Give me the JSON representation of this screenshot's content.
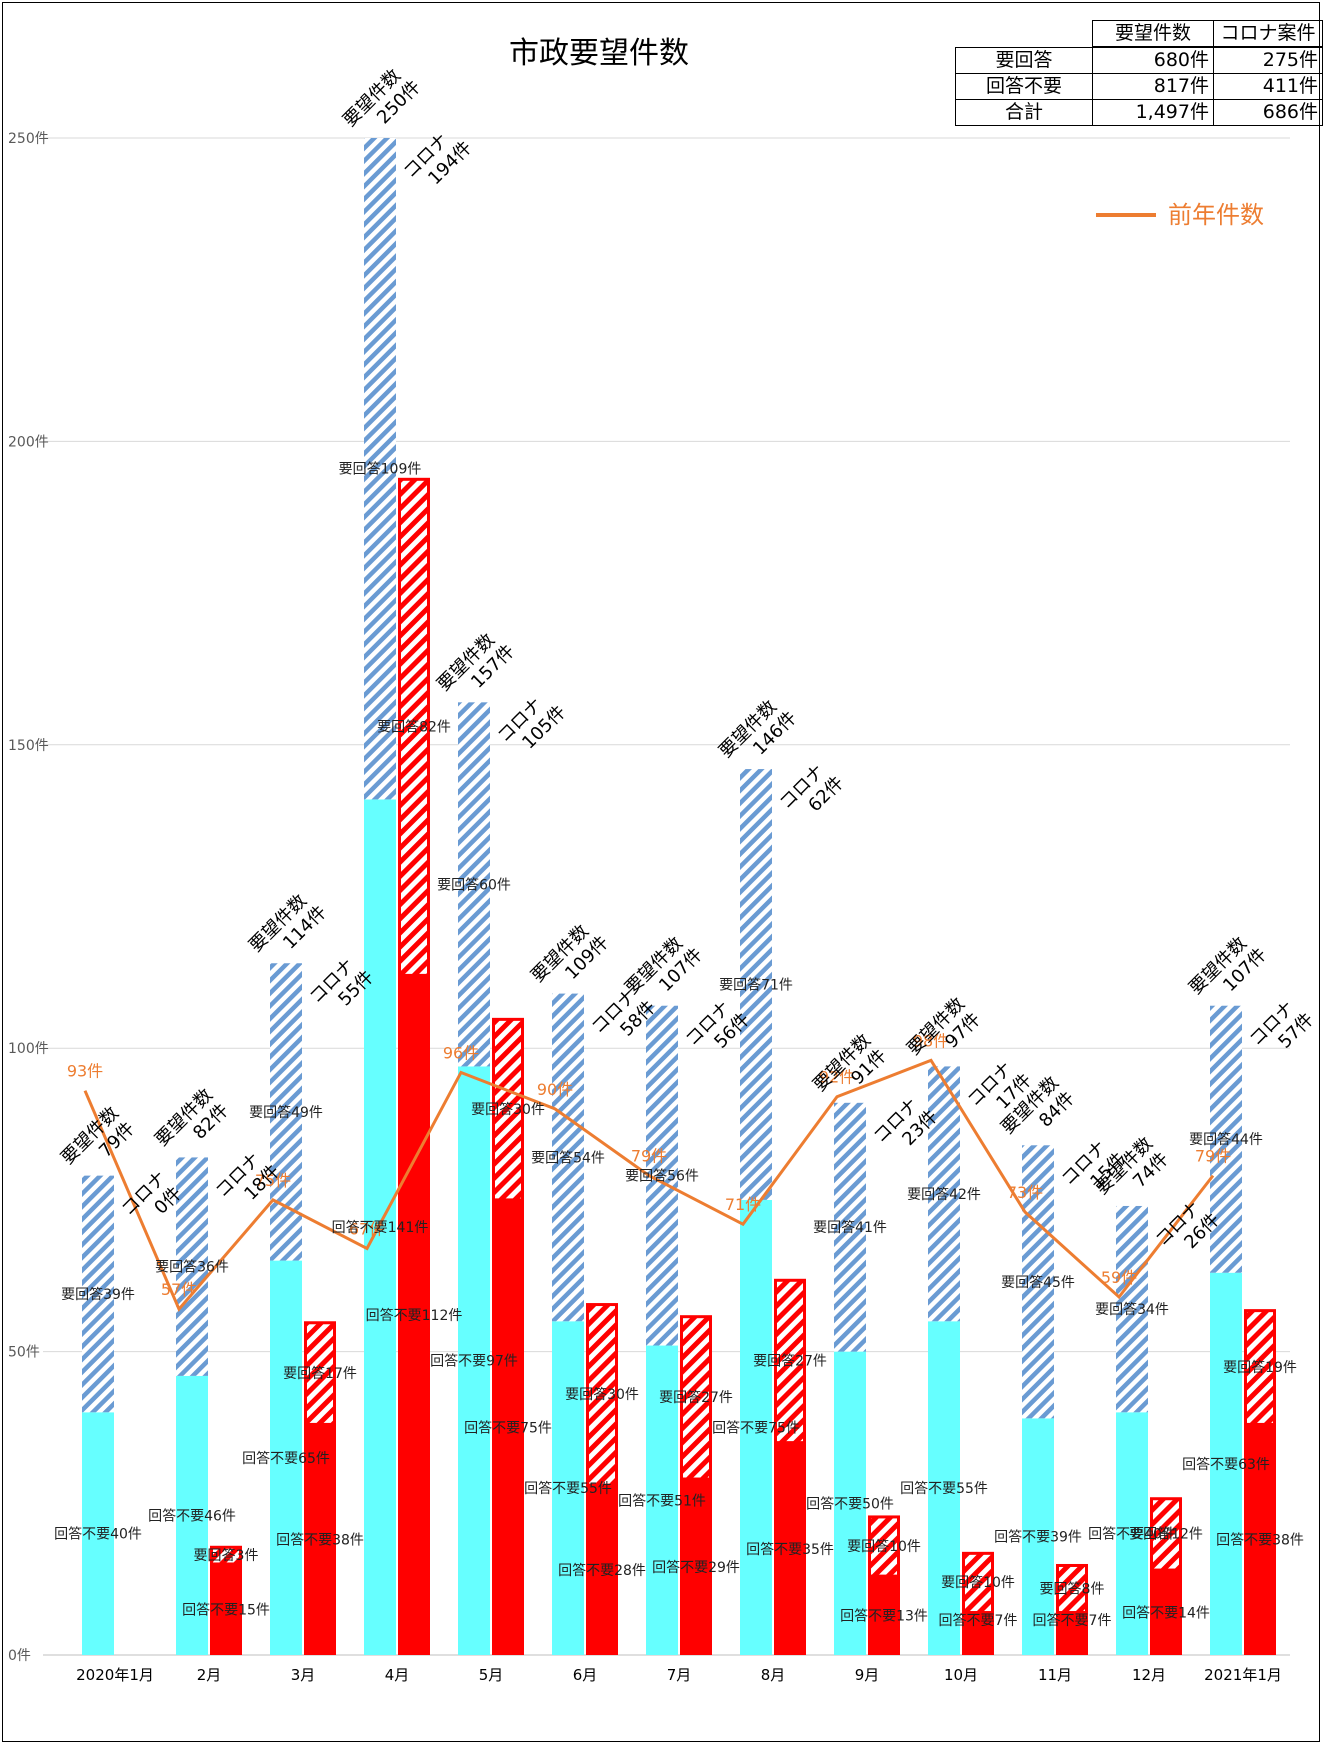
{
  "summary_table": {
    "columns": [
      "要望件数",
      "コロナ案件"
    ],
    "rows": [
      {
        "label": "要回答",
        "values": [
          "680件",
          "275件"
        ]
      },
      {
        "label": "回答不要",
        "values": [
          "817件",
          "411件"
        ]
      },
      {
        "label": "合計",
        "values": [
          "1,497件",
          "686件"
        ]
      }
    ]
  },
  "chart_data": {
    "type": "bar",
    "title": "市政要望件数",
    "ylim": [
      0,
      250
    ],
    "yticks": [
      {
        "value": 0,
        "label": "0件"
      },
      {
        "value": 50,
        "label": "50件"
      },
      {
        "value": 100,
        "label": "100件"
      },
      {
        "value": 150,
        "label": "150件"
      },
      {
        "value": 200,
        "label": "200件"
      },
      {
        "value": 250,
        "label": "250件"
      }
    ],
    "grid": true,
    "legend": {
      "position": "top-right",
      "entries": [
        {
          "name": "前年件数",
          "color": "#ED7D31"
        }
      ]
    },
    "colors": {
      "total_reply_needed": "#6A9BD3",
      "total_no_reply": "#66FFFF",
      "corona": "#FF0000",
      "prev_year": "#ED7D31"
    },
    "categories": [
      "2020年1月",
      "2月",
      "3月",
      "4月",
      "5月",
      "6月",
      "7月",
      "8月",
      "9月",
      "10月",
      "11月",
      "12月",
      "2021年1月"
    ],
    "series": [
      {
        "name": "要望件数",
        "no_reply": [
          40,
          46,
          65,
          141,
          97,
          55,
          51,
          75,
          50,
          55,
          39,
          40,
          63
        ],
        "reply_needed": [
          39,
          36,
          49,
          109,
          60,
          54,
          56,
          71,
          41,
          42,
          45,
          34,
          44
        ],
        "total": [
          79,
          82,
          114,
          250,
          157,
          109,
          107,
          146,
          91,
          97,
          84,
          74,
          107
        ],
        "no_reply_labels": [
          "回答不要40件",
          "回答不要46件",
          "回答不要65件",
          "回答不要141件",
          "回答不要97件",
          "回答不要55件",
          "回答不要51件",
          "回答不要75件",
          "回答不要50件",
          "回答不要55件",
          "回答不要39件",
          "回答不要40件",
          "回答不要63件"
        ],
        "reply_needed_labels": [
          "要回答39件",
          "要回答36件",
          "要回答49件",
          "要回答109件",
          "要回答60件",
          "要回答54件",
          "要回答56件",
          "要回答71件",
          "要回答41件",
          "要回答42件",
          "要回答45件",
          "要回答34件",
          "要回答44件"
        ],
        "annotation": [
          "要望件数",
          "79件",
          "82件",
          "114件",
          "250件",
          "157件",
          "109件",
          "107件",
          "146件",
          "91件",
          "97件",
          "84件",
          "74件",
          "107件"
        ]
      },
      {
        "name": "コロナ",
        "no_reply": [
          0,
          15,
          38,
          112,
          75,
          28,
          29,
          35,
          13,
          7,
          7,
          14,
          38
        ],
        "reply_needed": [
          0,
          3,
          17,
          82,
          30,
          30,
          27,
          27,
          10,
          10,
          8,
          12,
          19
        ],
        "total": [
          0,
          18,
          55,
          194,
          105,
          58,
          56,
          62,
          23,
          17,
          15,
          26,
          57
        ],
        "no_reply_labels": [
          "",
          "回答不要15件",
          "回答不要38件",
          "回答不要112件",
          "回答不要75件",
          "回答不要28件",
          "回答不要29件",
          "回答不要35件",
          "回答不要13件",
          "回答不要7件",
          "回答不要7件",
          "回答不要14件",
          "回答不要38件"
        ],
        "reply_needed_labels": [
          "",
          "要回答3件",
          "要回答17件",
          "要回答82件",
          "要回答30件",
          "要回答30件",
          "要回答27件",
          "要回答27件",
          "要回答10件",
          "要回答10件",
          "要回答8件",
          "要回答12件",
          "要回答19件"
        ],
        "annotation_name": "コロナ",
        "annotation_values": [
          "0件",
          "18件",
          "55件",
          "194件",
          "105件",
          "58件",
          "56件",
          "62件",
          "23件",
          "17件",
          "15件",
          "26件",
          "57件"
        ]
      },
      {
        "name": "前年件数",
        "type": "line",
        "values": [
          93,
          57,
          75,
          67,
          96,
          90,
          79,
          71,
          92,
          98,
          73,
          59,
          79
        ],
        "labels": [
          "93件",
          "57件",
          "75件",
          "67件",
          "96件",
          "90件",
          "79件",
          "71件",
          "92件",
          "98件",
          "73件",
          "59件",
          "79件"
        ]
      }
    ]
  }
}
